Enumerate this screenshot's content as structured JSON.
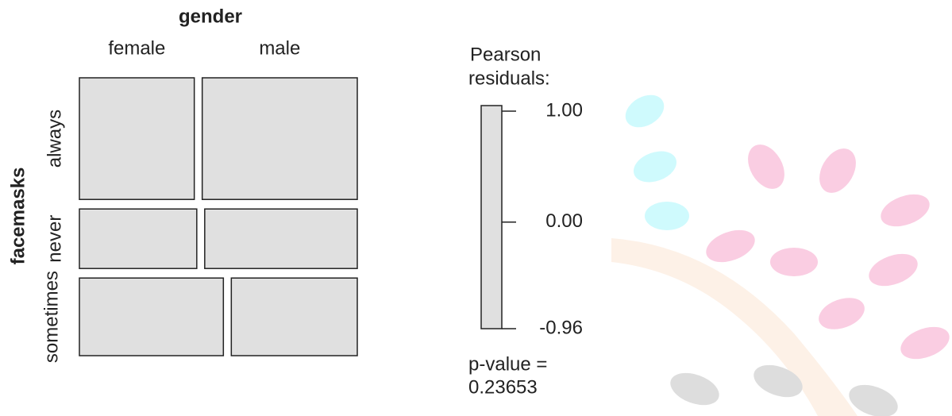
{
  "chart_data": {
    "type": "mosaic",
    "x_label": "gender",
    "y_label": "facemasks",
    "categories": [
      "always",
      "never",
      "sometimes"
    ],
    "series": [
      {
        "name": "female",
        "color": "#e0e0e0",
        "values": [
          20,
          10,
          16
        ]
      },
      {
        "name": "male",
        "color": "#e0e0e0",
        "values": [
          27,
          13,
          14
        ]
      }
    ],
    "legend_title": [
      "Pearson",
      "residuals:"
    ],
    "legend_ylim": [
      -0.96,
      1.0
    ],
    "legend_ticks": [
      {
        "value": 1.0,
        "label": "1.00"
      },
      {
        "value": 0,
        "label": "0.00"
      },
      {
        "value": -0.96,
        "label": "-0.96"
      }
    ],
    "p_value_label": "p-value =",
    "p_value": 0.23653
  }
}
